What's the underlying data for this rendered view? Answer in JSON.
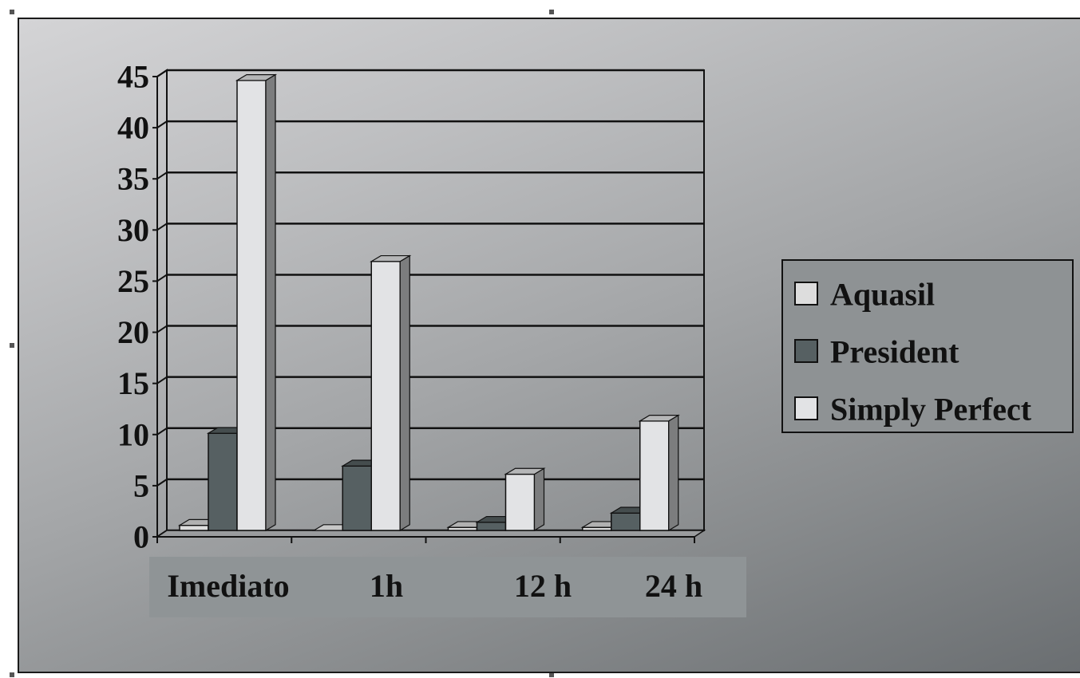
{
  "chart_data": {
    "type": "bar",
    "categories": [
      "Imediato",
      "1h",
      "12 h",
      "24 h"
    ],
    "series": [
      {
        "name": "Aquasil",
        "values": [
          0.5,
          0,
          0.3,
          0.3
        ]
      },
      {
        "name": "President",
        "values": [
          9.5,
          6.3,
          0.8,
          1.7
        ]
      },
      {
        "name": "Simply Perfect",
        "values": [
          44,
          26.3,
          5.5,
          10.7
        ]
      }
    ],
    "ylim": [
      0,
      45
    ],
    "yticks": [
      "0",
      "5",
      "10",
      "15",
      "20",
      "25",
      "30",
      "35",
      "40",
      "45"
    ],
    "grid": true,
    "legend_position": "right",
    "colors": {
      "Aquasil": "#dddddd",
      "President": "#566062",
      "Simply Perfect": "#e2e3e5"
    }
  }
}
